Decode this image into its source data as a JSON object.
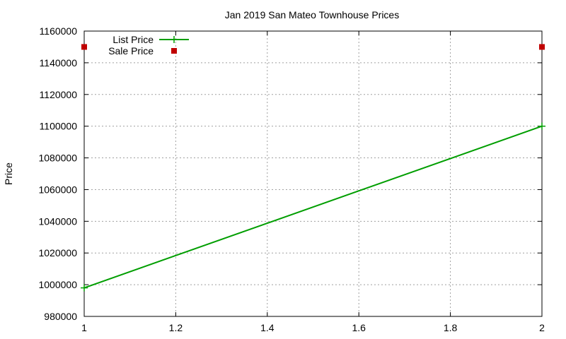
{
  "chart_data": {
    "type": "line",
    "title": "Jan 2019 San Mateo Townhouse Prices",
    "xlabel": "",
    "ylabel": "Price",
    "xlim": [
      1,
      2
    ],
    "ylim": [
      980000,
      1160000
    ],
    "x_ticks": [
      "1",
      "1.2",
      "1.4",
      "1.6",
      "1.8",
      "2"
    ],
    "y_ticks": [
      "980000",
      "1000000",
      "1020000",
      "1040000",
      "1060000",
      "1080000",
      "1100000",
      "1120000",
      "1140000",
      "1160000"
    ],
    "grid": true,
    "legend_position": "top-left",
    "series": [
      {
        "name": "List Price",
        "style": "linespoints",
        "color": "#009e00",
        "points": [
          {
            "x": 1,
            "y": 998000
          },
          {
            "x": 2,
            "y": 1100000
          }
        ]
      },
      {
        "name": "Sale Price",
        "style": "points",
        "color": "#c00000",
        "points": [
          {
            "x": 1,
            "y": 1150000
          },
          {
            "x": 2,
            "y": 1150000
          }
        ]
      }
    ]
  }
}
